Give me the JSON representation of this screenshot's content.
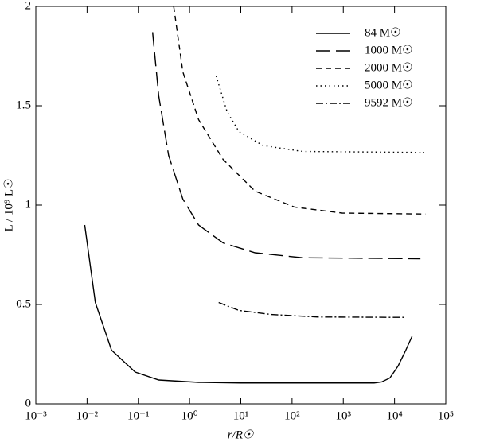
{
  "chart_data": {
    "type": "line",
    "x_label": "r/R☉",
    "y_label": "L / 10⁹ L☉",
    "xscale": "log",
    "xlim": [
      0.001,
      100000
    ],
    "xticks": [
      {
        "value": 0.001,
        "label": "10⁻³"
      },
      {
        "value": 0.01,
        "label": "10⁻²"
      },
      {
        "value": 0.1,
        "label": "10⁻¹"
      },
      {
        "value": 1,
        "label": "10⁰"
      },
      {
        "value": 10,
        "label": "10¹"
      },
      {
        "value": 100,
        "label": "10²"
      },
      {
        "value": 1000,
        "label": "10³"
      },
      {
        "value": 10000,
        "label": "10⁴"
      },
      {
        "value": 100000,
        "label": "10⁵"
      }
    ],
    "ylim": [
      0,
      2
    ],
    "yticks": [
      0,
      0.5,
      1,
      1.5,
      2
    ],
    "legend": "upper right",
    "series": [
      {
        "name": "84 M☉",
        "color": "#000000",
        "dash": "solid",
        "x": [
          0.009,
          0.0145,
          0.03,
          0.087,
          0.25,
          1.5,
          10,
          100,
          1000,
          4000,
          5600,
          8100,
          11700,
          16600,
          22000
        ],
        "values": [
          0.9,
          0.51,
          0.27,
          0.16,
          0.12,
          0.108,
          0.105,
          0.105,
          0.105,
          0.105,
          0.11,
          0.13,
          0.19,
          0.27,
          0.34
        ]
      },
      {
        "name": "1000 M☉",
        "color": "#000000",
        "dash": "long",
        "x": [
          0.19,
          0.25,
          0.39,
          0.74,
          1.5,
          4.5,
          19,
          160,
          32000
        ],
        "values": [
          1.87,
          1.55,
          1.25,
          1.03,
          0.9,
          0.81,
          0.76,
          0.735,
          0.73
        ]
      },
      {
        "name": "2000 M☉",
        "color": "#000000",
        "dash": "short",
        "x": [
          0.49,
          0.74,
          1.5,
          4.5,
          19,
          112,
          950,
          40000
        ],
        "values": [
          2.0,
          1.67,
          1.43,
          1.23,
          1.07,
          0.99,
          0.96,
          0.955
        ]
      },
      {
        "name": "5000 M☉",
        "color": "#000000",
        "dash": "dotted",
        "x": [
          3.3,
          5.4,
          9.2,
          27,
          160,
          38000
        ],
        "values": [
          1.65,
          1.47,
          1.37,
          1.3,
          1.27,
          1.265
        ]
      },
      {
        "name": "9592 M☉",
        "color": "#000000",
        "dash": "dashdot",
        "x": [
          3.7,
          9.2,
          38,
          320,
          16600
        ],
        "values": [
          0.51,
          0.47,
          0.45,
          0.437,
          0.435
        ]
      }
    ]
  }
}
